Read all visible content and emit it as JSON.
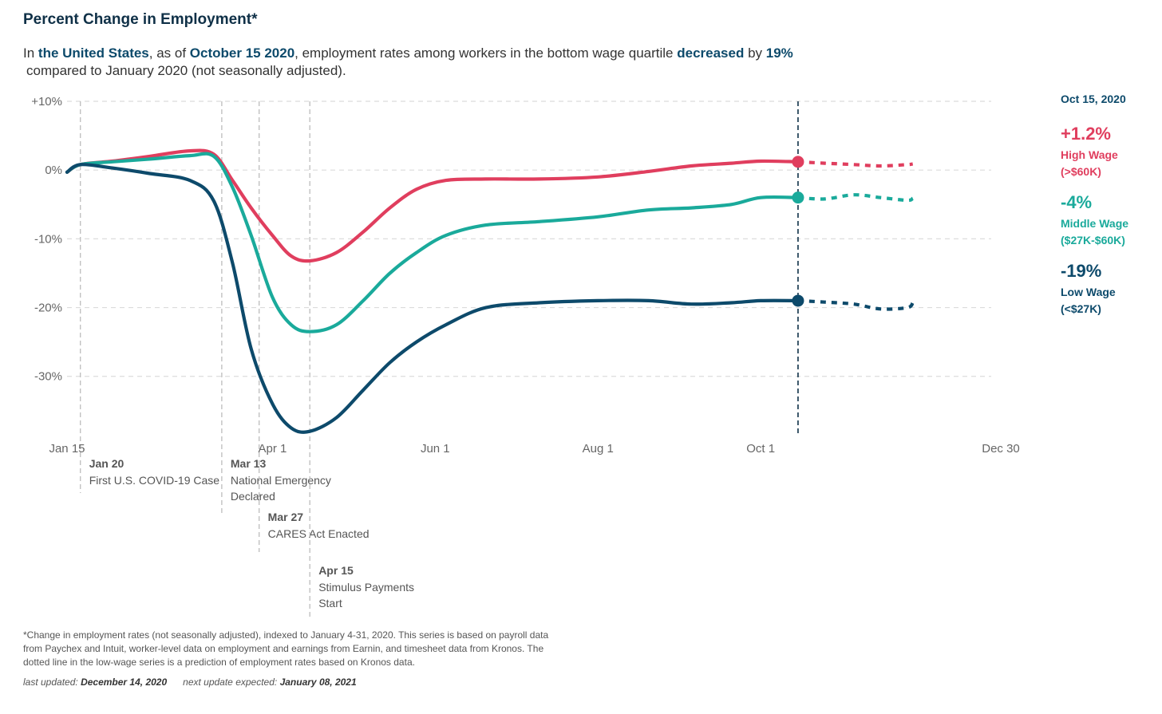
{
  "header": {
    "title": "Percent Change in Employment*",
    "subtitle": {
      "p1": "In ",
      "place": "the United States",
      "p2": ", as of ",
      "date": "October 15 2020",
      "p3": ", employment rates among workers in the bottom wage quartile ",
      "direction": "decreased",
      "p4": " by ",
      "amount": "19%",
      "p5": "compared to January 2020 (not seasonally adjusted)."
    }
  },
  "side_panel": {
    "date": "Oct 15, 2020",
    "entries": [
      {
        "value": "+1.2%",
        "label": "High Wage",
        "sublabel": "(>$60K)",
        "color": "#e03e5e"
      },
      {
        "value": "-4%",
        "label": "Middle Wage",
        "sublabel": "($27K-$60K)",
        "color": "#1aaa9b"
      },
      {
        "value": "-19%",
        "label": "Low Wage",
        "sublabel": "(<$27K)",
        "color": "#0d4a6b"
      }
    ]
  },
  "footer": {
    "footnote": "*Change in employment rates (not seasonally adjusted), indexed to January 4-31, 2020. This series is based on payroll data from Paychex and Intuit, worker-level data on employment and earnings from Earnin, and timesheet data from Kronos. The dotted line in the low-wage series is a prediction of employment rates based on Kronos data.",
    "last_updated_label": "last updated:",
    "last_updated": "December 14, 2020",
    "next_update_label": "next update expected:",
    "next_update": "January 08, 2021"
  },
  "chart_data": {
    "type": "line",
    "title": "Percent Change in Employment*",
    "xlabel": "",
    "ylabel": "",
    "ylim": [
      -38.5,
      10
    ],
    "xlim": [
      "2020-01-15",
      "2020-12-30"
    ],
    "yticks": [
      10,
      0,
      -10,
      -20,
      -30
    ],
    "ytick_labels": [
      "+10%",
      "0%",
      "-10%",
      "-20%",
      "-30%"
    ],
    "xticks": [
      "2020-01-15",
      "2020-04-01",
      "2020-06-01",
      "2020-08-01",
      "2020-10-01",
      "2020-12-30"
    ],
    "xtick_labels": [
      "Jan 15",
      "Apr 1",
      "Jun 1",
      "Aug 1",
      "Oct 1",
      "Dec 30"
    ],
    "grid": true,
    "reference_line": {
      "date": "2020-10-15"
    },
    "events": [
      {
        "date": "2020-01-20",
        "date_label": "Jan 20",
        "lines": [
          "First U.S. COVID-19 Case"
        ]
      },
      {
        "date": "2020-03-13",
        "date_label": "Mar 13",
        "lines": [
          "National Emergency",
          "Declared"
        ]
      },
      {
        "date": "2020-03-27",
        "date_label": "Mar 27",
        "lines": [
          "CARES Act Enacted"
        ]
      },
      {
        "date": "2020-04-15",
        "date_label": "Apr 15",
        "lines": [
          "Stimulus Payments",
          "Start"
        ]
      }
    ],
    "series": [
      {
        "color": "#e03e5e",
        "x": [
          "2020-01-15",
          "2020-01-20",
          "2020-02-01",
          "2020-02-15",
          "2020-03-01",
          "2020-03-10",
          "2020-03-17",
          "2020-03-24",
          "2020-04-01",
          "2020-04-08",
          "2020-04-15",
          "2020-04-25",
          "2020-05-05",
          "2020-05-15",
          "2020-05-25",
          "2020-06-05",
          "2020-06-20",
          "2020-07-10",
          "2020-08-01",
          "2020-08-20",
          "2020-09-05",
          "2020-09-20",
          "2020-10-01",
          "2020-10-15"
        ],
        "y": [
          -0.3,
          0.8,
          1.3,
          2.0,
          2.8,
          2.3,
          -1.5,
          -5.5,
          -9.5,
          -12.5,
          -13.2,
          -12.0,
          -9.0,
          -5.5,
          -2.8,
          -1.5,
          -1.3,
          -1.3,
          -1.0,
          -0.2,
          0.6,
          1.0,
          1.3,
          1.2
        ],
        "projection": {
          "x": [
            "2020-10-15",
            "2020-10-25",
            "2020-11-05",
            "2020-11-15",
            "2020-11-25",
            "2020-11-27"
          ],
          "y": [
            1.2,
            1.0,
            0.8,
            0.6,
            0.8,
            0.9
          ]
        }
      },
      {
        "color": "#1aaa9b",
        "x": [
          "2020-01-15",
          "2020-01-20",
          "2020-02-01",
          "2020-02-15",
          "2020-03-01",
          "2020-03-10",
          "2020-03-17",
          "2020-03-24",
          "2020-04-01",
          "2020-04-08",
          "2020-04-15",
          "2020-04-25",
          "2020-05-05",
          "2020-05-15",
          "2020-05-25",
          "2020-06-05",
          "2020-06-20",
          "2020-07-10",
          "2020-08-01",
          "2020-08-20",
          "2020-09-05",
          "2020-09-20",
          "2020-10-01",
          "2020-10-15"
        ],
        "y": [
          -0.3,
          0.8,
          1.2,
          1.6,
          2.1,
          2.0,
          -2.5,
          -9.5,
          -18.5,
          -22.5,
          -23.5,
          -22.5,
          -19.0,
          -15.0,
          -12.0,
          -9.5,
          -8.0,
          -7.5,
          -6.8,
          -5.8,
          -5.5,
          -5.0,
          -4.0,
          -4.0
        ],
        "projection": {
          "x": [
            "2020-10-15",
            "2020-10-25",
            "2020-11-05",
            "2020-11-15",
            "2020-11-25",
            "2020-11-27"
          ],
          "y": [
            -4.0,
            -4.2,
            -3.6,
            -4.0,
            -4.4,
            -4.1
          ]
        }
      },
      {
        "color": "#0d4a6b",
        "x": [
          "2020-01-15",
          "2020-01-20",
          "2020-02-01",
          "2020-02-15",
          "2020-03-01",
          "2020-03-10",
          "2020-03-17",
          "2020-03-24",
          "2020-04-01",
          "2020-04-08",
          "2020-04-15",
          "2020-04-25",
          "2020-05-05",
          "2020-05-15",
          "2020-05-25",
          "2020-06-05",
          "2020-06-20",
          "2020-07-10",
          "2020-08-01",
          "2020-08-20",
          "2020-09-05",
          "2020-09-20",
          "2020-10-01",
          "2020-10-15"
        ],
        "y": [
          -0.3,
          0.8,
          0.3,
          -0.5,
          -1.5,
          -4.5,
          -13.5,
          -26.0,
          -34.0,
          -37.5,
          -38.0,
          -36.0,
          -32.0,
          -28.0,
          -25.0,
          -22.5,
          -20.0,
          -19.3,
          -19.0,
          -19.0,
          -19.5,
          -19.3,
          -19.0,
          -19.0
        ],
        "projection": {
          "x": [
            "2020-10-15",
            "2020-10-25",
            "2020-11-05",
            "2020-11-15",
            "2020-11-25",
            "2020-11-27"
          ],
          "y": [
            -19.0,
            -19.2,
            -19.5,
            -20.2,
            -20.0,
            -19.3
          ]
        }
      }
    ]
  }
}
